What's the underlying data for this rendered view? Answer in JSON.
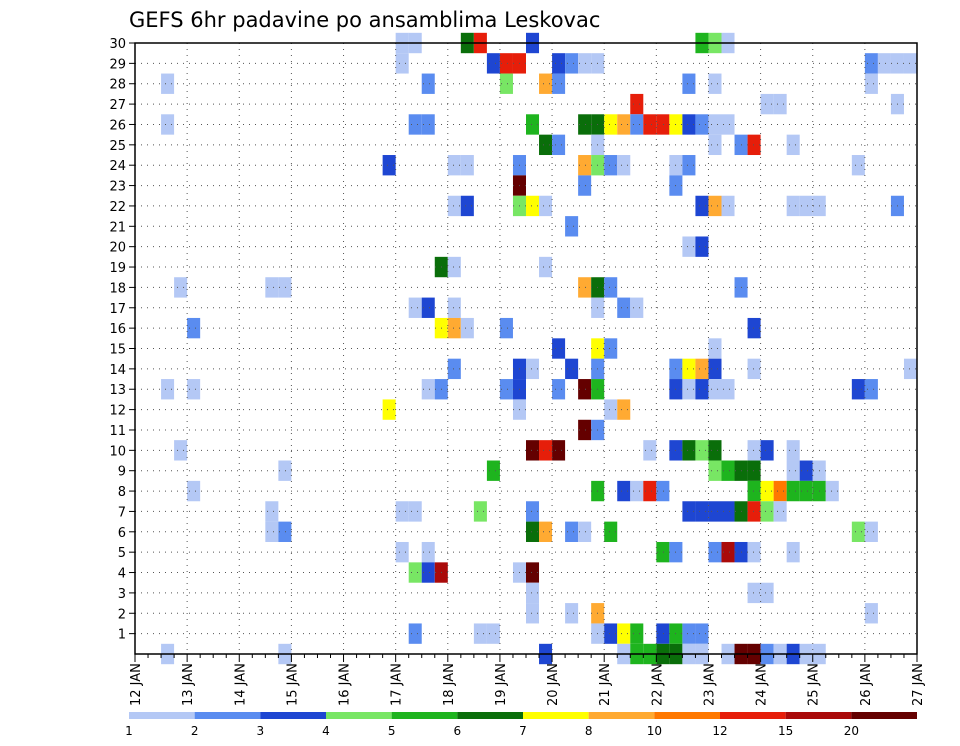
{
  "chart_data": {
    "type": "heatmap",
    "title": "GEFS 6hr padavine po ansamblima Leskovac",
    "xlabel": "",
    "ylabel": "",
    "x_tick_labels": [
      "12 JAN",
      "13 JAN",
      "14 JAN",
      "15 JAN",
      "16 JAN",
      "17 JAN",
      "18 JAN",
      "19 JAN",
      "20 JAN",
      "21 JAN",
      "22 JAN",
      "23 JAN",
      "24 JAN",
      "25 JAN",
      "26 JAN",
      "27 JAN"
    ],
    "y_tick_labels": [
      "1",
      "2",
      "3",
      "4",
      "5",
      "6",
      "7",
      "8",
      "9",
      "10",
      "11",
      "12",
      "13",
      "14",
      "15",
      "16",
      "17",
      "18",
      "19",
      "20",
      "21",
      "22",
      "23",
      "24",
      "25",
      "26",
      "27",
      "28",
      "29",
      "30"
    ],
    "xlim_days": [
      0,
      15
    ],
    "ylim_members": [
      0,
      30
    ],
    "cell_width_days": 0.25,
    "grid": true,
    "legend_position": "bottom",
    "legend_levels": [
      "1",
      "2",
      "3",
      "4",
      "5",
      "6",
      "7",
      "8",
      "10",
      "12",
      "15",
      "20"
    ],
    "legend_colors": [
      "#b4c8f5",
      "#5a8cf0",
      "#1e46d2",
      "#78e664",
      "#1eb41e",
      "#0a6e0a",
      "#ffff00",
      "#ffaa32",
      "#ff7800",
      "#e61e0a",
      "#aa0a0a",
      "#640000"
    ],
    "cells": [
      [
        5.0,
        30,
        1
      ],
      [
        5.25,
        30,
        1
      ],
      [
        6.25,
        30,
        6
      ],
      [
        6.5,
        30,
        10
      ],
      [
        7.5,
        30,
        3
      ],
      [
        10.75,
        30,
        5
      ],
      [
        11.0,
        30,
        4
      ],
      [
        11.25,
        30,
        1
      ],
      [
        5.0,
        29,
        1
      ],
      [
        6.75,
        29,
        3
      ],
      [
        7.0,
        29,
        10
      ],
      [
        7.25,
        29,
        10
      ],
      [
        8.0,
        29,
        3
      ],
      [
        8.25,
        29,
        2
      ],
      [
        8.5,
        29,
        1
      ],
      [
        8.75,
        29,
        1
      ],
      [
        14.0,
        29,
        2
      ],
      [
        14.25,
        29,
        1
      ],
      [
        14.5,
        29,
        1
      ],
      [
        14.75,
        29,
        1
      ],
      [
        0.5,
        28,
        1
      ],
      [
        5.5,
        28,
        2
      ],
      [
        7.0,
        28,
        4
      ],
      [
        7.75,
        28,
        8
      ],
      [
        8.0,
        28,
        2
      ],
      [
        10.5,
        28,
        2
      ],
      [
        11.0,
        28,
        1
      ],
      [
        14.0,
        28,
        1
      ],
      [
        9.5,
        27,
        10
      ],
      [
        12.0,
        27,
        1
      ],
      [
        12.25,
        27,
        1
      ],
      [
        14.5,
        27,
        1
      ],
      [
        0.5,
        26,
        1
      ],
      [
        5.25,
        26,
        2
      ],
      [
        5.5,
        26,
        2
      ],
      [
        7.5,
        26,
        5
      ],
      [
        8.5,
        26,
        6
      ],
      [
        8.75,
        26,
        6
      ],
      [
        9.0,
        26,
        7
      ],
      [
        9.25,
        26,
        8
      ],
      [
        9.5,
        26,
        2
      ],
      [
        9.75,
        26,
        10
      ],
      [
        10.0,
        26,
        10
      ],
      [
        10.25,
        26,
        7
      ],
      [
        10.5,
        26,
        3
      ],
      [
        10.75,
        26,
        2
      ],
      [
        11.0,
        26,
        1
      ],
      [
        11.25,
        26,
        1
      ],
      [
        7.75,
        25,
        6
      ],
      [
        8.0,
        25,
        2
      ],
      [
        8.75,
        25,
        1
      ],
      [
        11.0,
        25,
        1
      ],
      [
        11.5,
        25,
        2
      ],
      [
        11.75,
        25,
        10
      ],
      [
        12.5,
        25,
        1
      ],
      [
        4.75,
        24,
        3
      ],
      [
        6.0,
        24,
        1
      ],
      [
        6.25,
        24,
        1
      ],
      [
        7.25,
        24,
        2
      ],
      [
        8.5,
        24,
        8
      ],
      [
        8.75,
        24,
        4
      ],
      [
        9.0,
        24,
        2
      ],
      [
        9.25,
        24,
        1
      ],
      [
        10.25,
        24,
        1
      ],
      [
        10.5,
        24,
        2
      ],
      [
        13.75,
        24,
        1
      ],
      [
        7.25,
        23,
        13
      ],
      [
        8.5,
        23,
        2
      ],
      [
        10.25,
        23,
        2
      ],
      [
        6.0,
        22,
        1
      ],
      [
        6.25,
        22,
        3
      ],
      [
        7.25,
        22,
        4
      ],
      [
        7.5,
        22,
        7
      ],
      [
        7.75,
        22,
        1
      ],
      [
        10.75,
        22,
        3
      ],
      [
        11.0,
        22,
        8
      ],
      [
        11.25,
        22,
        1
      ],
      [
        12.5,
        22,
        1
      ],
      [
        12.75,
        22,
        1
      ],
      [
        13.0,
        22,
        1
      ],
      [
        14.5,
        22,
        2
      ],
      [
        8.25,
        21,
        2
      ],
      [
        10.5,
        20,
        1
      ],
      [
        10.75,
        20,
        3
      ],
      [
        5.75,
        19,
        6
      ],
      [
        6.0,
        19,
        1
      ],
      [
        7.75,
        19,
        1
      ],
      [
        0.75,
        18,
        1
      ],
      [
        2.5,
        18,
        1
      ],
      [
        2.75,
        18,
        1
      ],
      [
        8.5,
        18,
        8
      ],
      [
        8.75,
        18,
        6
      ],
      [
        9.0,
        18,
        2
      ],
      [
        11.5,
        18,
        2
      ],
      [
        5.25,
        17,
        1
      ],
      [
        5.5,
        17,
        3
      ],
      [
        6.0,
        17,
        1
      ],
      [
        8.75,
        17,
        1
      ],
      [
        9.25,
        17,
        2
      ],
      [
        9.5,
        17,
        1
      ],
      [
        1.0,
        16,
        2
      ],
      [
        5.75,
        16,
        7
      ],
      [
        6.0,
        16,
        8
      ],
      [
        6.25,
        16,
        1
      ],
      [
        7.0,
        16,
        2
      ],
      [
        11.75,
        16,
        3
      ],
      [
        8.0,
        15,
        3
      ],
      [
        8.75,
        15,
        7
      ],
      [
        9.0,
        15,
        2
      ],
      [
        11.0,
        15,
        1
      ],
      [
        6.0,
        14,
        2
      ],
      [
        7.25,
        14,
        3
      ],
      [
        7.5,
        14,
        1
      ],
      [
        8.25,
        14,
        3
      ],
      [
        8.75,
        14,
        2
      ],
      [
        10.25,
        14,
        2
      ],
      [
        10.5,
        14,
        7
      ],
      [
        10.75,
        14,
        8
      ],
      [
        11.0,
        14,
        3
      ],
      [
        11.75,
        14,
        1
      ],
      [
        14.75,
        14,
        1
      ],
      [
        0.5,
        13,
        1
      ],
      [
        1.0,
        13,
        1
      ],
      [
        5.5,
        13,
        1
      ],
      [
        5.75,
        13,
        2
      ],
      [
        7.0,
        13,
        2
      ],
      [
        7.25,
        13,
        3
      ],
      [
        8.0,
        13,
        2
      ],
      [
        8.5,
        13,
        13
      ],
      [
        8.75,
        13,
        5
      ],
      [
        10.25,
        13,
        3
      ],
      [
        10.5,
        13,
        1
      ],
      [
        10.75,
        13,
        3
      ],
      [
        11.0,
        13,
        1
      ],
      [
        11.25,
        13,
        1
      ],
      [
        13.75,
        13,
        3
      ],
      [
        14.0,
        13,
        2
      ],
      [
        4.75,
        12,
        7
      ],
      [
        7.25,
        12,
        1
      ],
      [
        9.0,
        12,
        1
      ],
      [
        9.25,
        12,
        8
      ],
      [
        8.5,
        11,
        14
      ],
      [
        8.75,
        11,
        2
      ],
      [
        0.75,
        10,
        1
      ],
      [
        7.5,
        10,
        14
      ],
      [
        7.75,
        10,
        10
      ],
      [
        8.0,
        10,
        13
      ],
      [
        9.75,
        10,
        1
      ],
      [
        10.25,
        10,
        3
      ],
      [
        10.5,
        10,
        6
      ],
      [
        10.75,
        10,
        4
      ],
      [
        11.0,
        10,
        6
      ],
      [
        11.75,
        10,
        1
      ],
      [
        12.0,
        10,
        3
      ],
      [
        12.5,
        10,
        1
      ],
      [
        2.75,
        9,
        1
      ],
      [
        6.75,
        9,
        5
      ],
      [
        11.0,
        9,
        4
      ],
      [
        11.25,
        9,
        5
      ],
      [
        11.5,
        9,
        6
      ],
      [
        11.75,
        9,
        6
      ],
      [
        12.5,
        9,
        1
      ],
      [
        12.75,
        9,
        3
      ],
      [
        13.0,
        9,
        1
      ],
      [
        1.0,
        8,
        1
      ],
      [
        8.75,
        8,
        5
      ],
      [
        9.25,
        8,
        3
      ],
      [
        9.5,
        8,
        1
      ],
      [
        9.75,
        8,
        10
      ],
      [
        10.0,
        8,
        2
      ],
      [
        11.75,
        8,
        5
      ],
      [
        12.0,
        8,
        7
      ],
      [
        12.25,
        8,
        9
      ],
      [
        12.5,
        8,
        5
      ],
      [
        12.75,
        8,
        5
      ],
      [
        13.0,
        8,
        5
      ],
      [
        13.25,
        8,
        1
      ],
      [
        2.5,
        7,
        1
      ],
      [
        5.0,
        7,
        1
      ],
      [
        5.25,
        7,
        1
      ],
      [
        6.5,
        7,
        4
      ],
      [
        7.5,
        7,
        2
      ],
      [
        10.5,
        7,
        3
      ],
      [
        10.75,
        7,
        3
      ],
      [
        11.0,
        7,
        3
      ],
      [
        11.25,
        7,
        3
      ],
      [
        11.5,
        7,
        6
      ],
      [
        11.75,
        7,
        10
      ],
      [
        12.0,
        7,
        4
      ],
      [
        12.25,
        7,
        1
      ],
      [
        2.5,
        6,
        1
      ],
      [
        2.75,
        6,
        2
      ],
      [
        7.5,
        6,
        6
      ],
      [
        7.75,
        6,
        8
      ],
      [
        8.25,
        6,
        2
      ],
      [
        8.5,
        6,
        1
      ],
      [
        9.0,
        6,
        5
      ],
      [
        13.75,
        6,
        4
      ],
      [
        14.0,
        6,
        1
      ],
      [
        5.0,
        5,
        1
      ],
      [
        5.5,
        5,
        1
      ],
      [
        10.0,
        5,
        5
      ],
      [
        10.25,
        5,
        2
      ],
      [
        11.0,
        5,
        2
      ],
      [
        11.25,
        5,
        11
      ],
      [
        11.5,
        5,
        3
      ],
      [
        11.75,
        5,
        1
      ],
      [
        12.5,
        5,
        1
      ],
      [
        5.25,
        4,
        4
      ],
      [
        5.5,
        4,
        3
      ],
      [
        5.75,
        4,
        11
      ],
      [
        7.25,
        4,
        1
      ],
      [
        7.5,
        4,
        14
      ],
      [
        7.5,
        3,
        1
      ],
      [
        11.75,
        3,
        1
      ],
      [
        12.0,
        3,
        1
      ],
      [
        8.75,
        2,
        8
      ],
      [
        8.25,
        2,
        1
      ],
      [
        7.5,
        2,
        1
      ],
      [
        14.0,
        2,
        1
      ],
      [
        5.25,
        1,
        2
      ],
      [
        6.5,
        1,
        1
      ],
      [
        6.75,
        1,
        1
      ],
      [
        8.75,
        1,
        1
      ],
      [
        9.0,
        1,
        3
      ],
      [
        9.25,
        1,
        7
      ],
      [
        9.5,
        1,
        5
      ],
      [
        10.0,
        1,
        3
      ],
      [
        10.25,
        1,
        5
      ],
      [
        10.5,
        1,
        2
      ],
      [
        10.75,
        1,
        2
      ],
      [
        0.5,
        0,
        1
      ],
      [
        2.75,
        0,
        1
      ],
      [
        7.75,
        0,
        3
      ],
      [
        9.25,
        0,
        1
      ],
      [
        9.5,
        0,
        5
      ],
      [
        9.75,
        0,
        5
      ],
      [
        10.0,
        0,
        6
      ],
      [
        10.25,
        0,
        6
      ],
      [
        10.5,
        0,
        1
      ],
      [
        10.75,
        0,
        1
      ],
      [
        11.25,
        0,
        1
      ],
      [
        11.5,
        0,
        14
      ],
      [
        11.75,
        0,
        15
      ],
      [
        12.0,
        0,
        2
      ],
      [
        12.25,
        0,
        1
      ],
      [
        12.5,
        0,
        3
      ],
      [
        12.75,
        0,
        1
      ],
      [
        13.0,
        0,
        1
      ]
    ]
  }
}
